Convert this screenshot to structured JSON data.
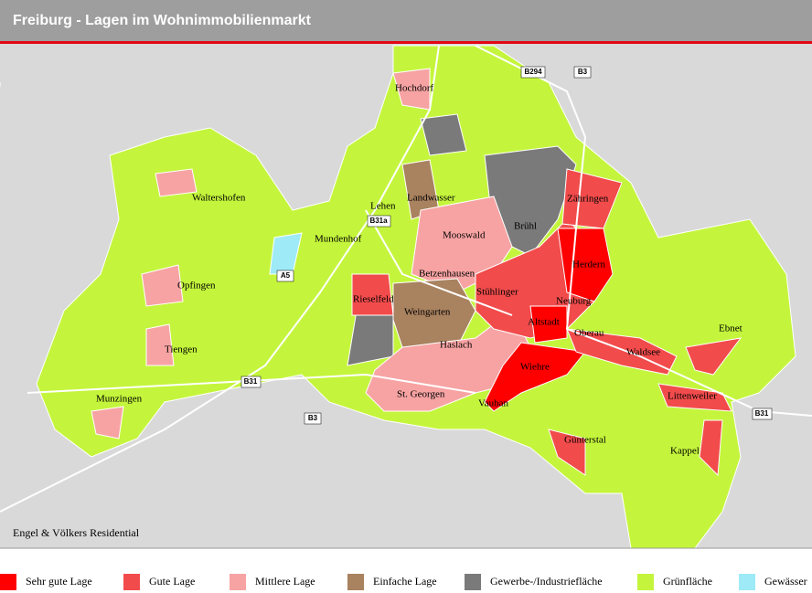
{
  "header": {
    "title": "Freiburg - Lagen im Wohnimmobilienmarkt"
  },
  "places": [
    {
      "label": "Hochdorf"
    },
    {
      "label": "Waltershofen"
    },
    {
      "label": "Landwasser"
    },
    {
      "label": "Zähringen"
    },
    {
      "label": "Lehen"
    },
    {
      "label": "Brühl"
    },
    {
      "label": "Mooswald"
    },
    {
      "label": "Mundenhof"
    },
    {
      "label": "Herdern"
    },
    {
      "label": "Opfingen"
    },
    {
      "label": "Betzenhausen"
    },
    {
      "label": "Rieselfeld"
    },
    {
      "label": "Stühlinger"
    },
    {
      "label": "Neuburg"
    },
    {
      "label": "Weingarten"
    },
    {
      "label": "Altstadt"
    },
    {
      "label": "Oberau"
    },
    {
      "label": "Ebnet"
    },
    {
      "label": "Haslach"
    },
    {
      "label": "Tiengen"
    },
    {
      "label": "Waldsee"
    },
    {
      "label": "Wiehre"
    },
    {
      "label": "St. Georgen"
    },
    {
      "label": "Littenweiler"
    },
    {
      "label": "Munzingen"
    },
    {
      "label": "Vauban"
    },
    {
      "label": "Günterstal"
    },
    {
      "label": "Kappel"
    }
  ],
  "roads": [
    {
      "label": "B294"
    },
    {
      "label": "B3"
    },
    {
      "label": "B31a"
    },
    {
      "label": "A5"
    },
    {
      "label": "B31"
    },
    {
      "label": "B3"
    },
    {
      "label": "B31"
    }
  ],
  "credit": "Engel & Völkers Residential",
  "legend": [
    {
      "label": "Sehr gute Lage",
      "color": "#ff0000"
    },
    {
      "label": "Gute Lage",
      "color": "#f24b4b"
    },
    {
      "label": "Mittlere Lage",
      "color": "#f7a3a3"
    },
    {
      "label": "Einfache Lage",
      "color": "#a9825f"
    },
    {
      "label": "Gewerbe-/Industriefläche",
      "color": "#7a7a7a"
    },
    {
      "label": "Grünfläche",
      "color": "#c4f53c"
    },
    {
      "label": "Gewässer",
      "color": "#9eeaf7"
    }
  ]
}
